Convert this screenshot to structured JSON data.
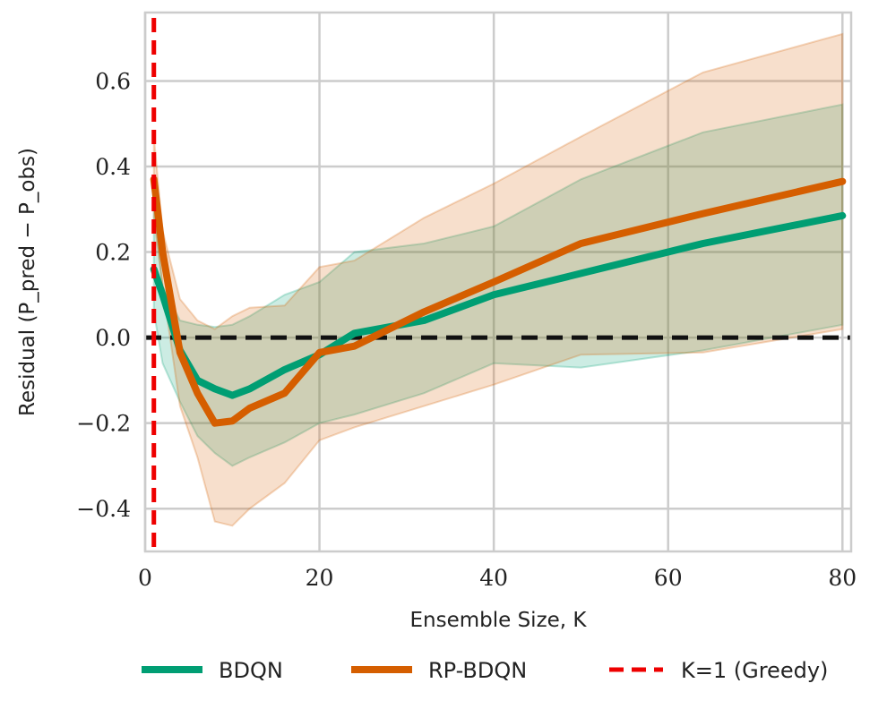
{
  "chart_data": {
    "type": "line",
    "title": "",
    "xlabel": "Ensemble Size, K",
    "ylabel": "Residual (P_pred − P_obs)",
    "xlim": [
      0,
      81
    ],
    "ylim": [
      -0.5,
      0.76
    ],
    "xticks": [
      0,
      20,
      40,
      60,
      80
    ],
    "xtick_labels": [
      "0",
      "20",
      "40",
      "60",
      "80"
    ],
    "yticks": [
      -0.4,
      -0.2,
      0.0,
      0.2,
      0.4,
      0.6
    ],
    "ytick_labels": [
      "−0.4",
      "−0.2",
      "0.0",
      "0.2",
      "0.4",
      "0.6"
    ],
    "grid": true,
    "legend_position": "bottom-outside",
    "x": [
      1,
      2,
      4,
      6,
      8,
      10,
      12,
      16,
      20,
      24,
      32,
      40,
      50,
      64,
      80
    ],
    "series": [
      {
        "name": "BDQN",
        "color": "#009e73",
        "values": [
          0.16,
          0.1,
          -0.03,
          -0.1,
          -0.12,
          -0.135,
          -0.12,
          -0.075,
          -0.04,
          0.01,
          0.04,
          0.1,
          0.15,
          0.22,
          0.285
        ],
        "upper": [
          0.31,
          0.12,
          0.04,
          0.03,
          0.025,
          0.03,
          0.05,
          0.1,
          0.13,
          0.2,
          0.22,
          0.26,
          0.37,
          0.48,
          0.545
        ],
        "lower": [
          0.06,
          -0.06,
          -0.15,
          -0.23,
          -0.27,
          -0.3,
          -0.28,
          -0.245,
          -0.2,
          -0.18,
          -0.13,
          -0.06,
          -0.07,
          -0.03,
          0.03
        ]
      },
      {
        "name": "RP-BDQN",
        "color": "#d55e00",
        "values": [
          0.37,
          0.2,
          -0.035,
          -0.13,
          -0.2,
          -0.195,
          -0.165,
          -0.13,
          -0.035,
          -0.02,
          0.06,
          0.13,
          0.22,
          0.29,
          0.365
        ],
        "upper": [
          0.47,
          0.25,
          0.09,
          0.04,
          0.02,
          0.05,
          0.07,
          0.075,
          0.165,
          0.18,
          0.28,
          0.36,
          0.47,
          0.62,
          0.71
        ],
        "lower": [
          0.28,
          0.12,
          -0.16,
          -0.28,
          -0.43,
          -0.44,
          -0.4,
          -0.34,
          -0.24,
          -0.21,
          -0.16,
          -0.11,
          -0.04,
          -0.035,
          0.02
        ]
      }
    ],
    "reference_lines": [
      {
        "axis": "y",
        "value": 0.0,
        "style": "dashed",
        "color": "#111111"
      },
      {
        "axis": "x",
        "value": 1,
        "style": "dashed",
        "color": "#ee0000",
        "name": "K=1 (Greedy)"
      }
    ]
  },
  "legend": [
    {
      "label": "BDQN",
      "color": "#009e73",
      "style": "solid"
    },
    {
      "label": "RP-BDQN",
      "color": "#d55e00",
      "style": "solid"
    },
    {
      "label": "K=1 (Greedy)",
      "color": "#ee0000",
      "style": "dashed"
    }
  ]
}
